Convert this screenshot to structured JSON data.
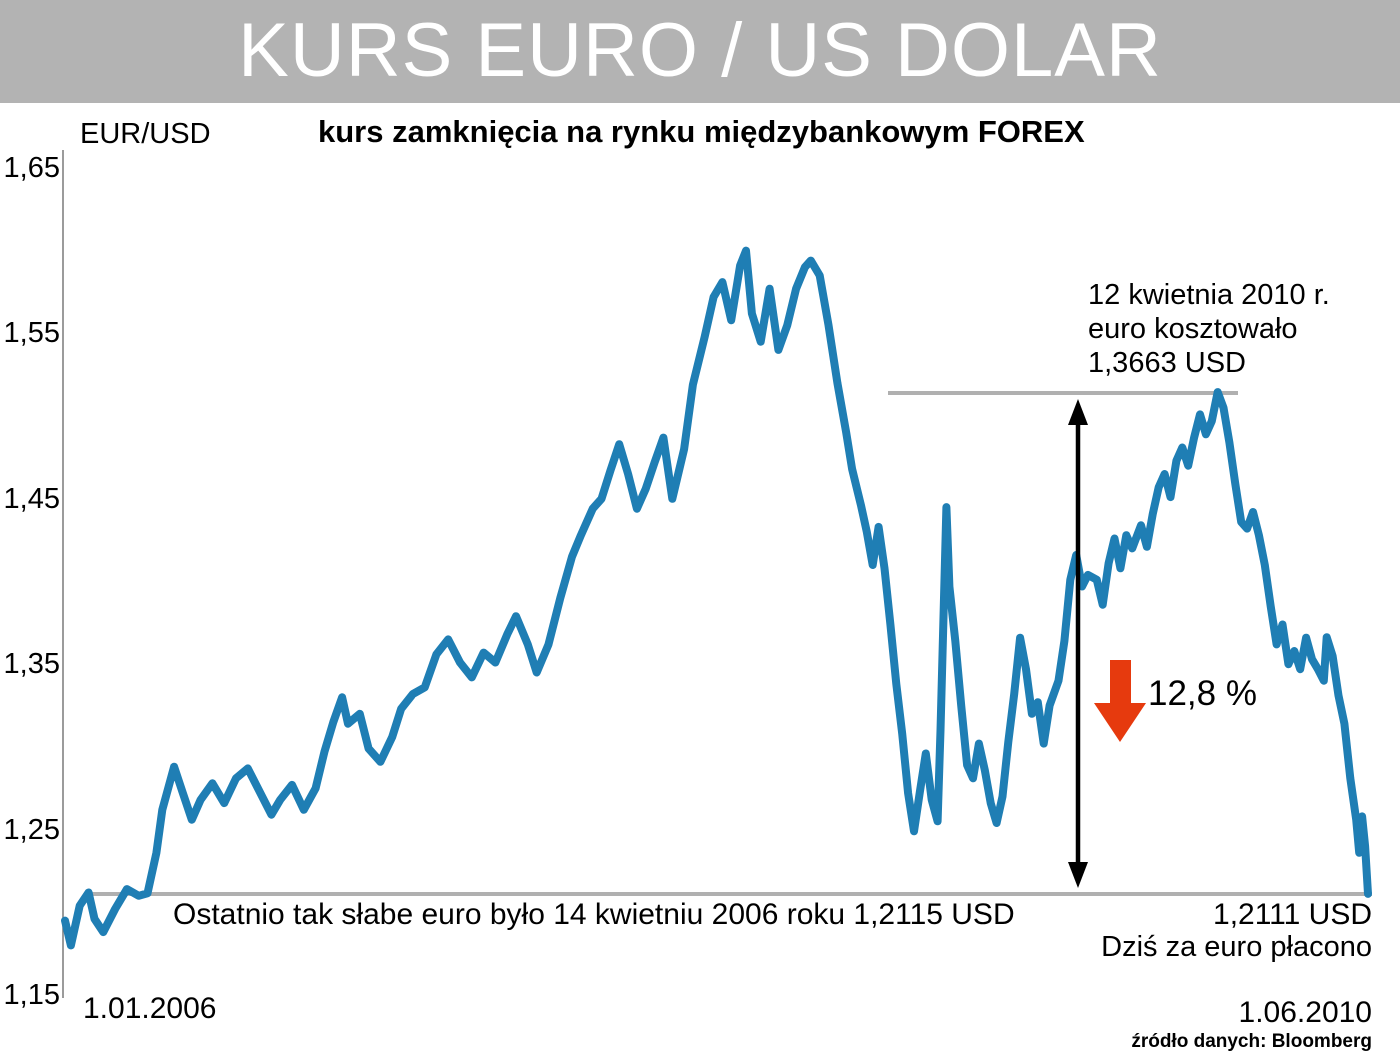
{
  "title": "KURS EURO / US DOLAR",
  "subtitle": "kurs zamknięcia na rynku międzybankowym FOREX",
  "colors": {
    "titlebar": "#b3b3b3",
    "line": "#1f7eb4",
    "ref_line": "#b0b0b0",
    "red_arrow": "#e63a0e",
    "black_arrow": "#000000"
  },
  "y_axis": {
    "label": "EUR/USD",
    "ticks": [
      "1,65",
      "1,55",
      "1,45",
      "1,35",
      "1,25",
      "1,15"
    ]
  },
  "x_axis": {
    "start": "1.01.2006",
    "end": "1.06.2010"
  },
  "annotations": {
    "peak_line1": "12 kwietnia 2010 r.",
    "peak_line2": "euro kosztowało",
    "peak_line3": "1,3663 USD",
    "drop_pct": "12,8 %",
    "low_2006": "Ostatnio tak słabe euro było 14 kwietniu 2006 roku 1,2115 USD",
    "current_value": "1,2111 USD",
    "current_caption": "Dziś za euro płacono",
    "source": "źródło danych: Bloomberg"
  },
  "chart_data": {
    "type": "line",
    "title": "KURS EURO / US DOLAR",
    "subtitle": "kurs zamknięcia na rynku międzybankowym FOREX",
    "ylabel": "EUR/USD",
    "ylim": [
      1.15,
      1.65
    ],
    "y_ticks": [
      1.65,
      1.55,
      1.45,
      1.35,
      1.25,
      1.15
    ],
    "x_range_labels": [
      "1.01.2006",
      "1.06.2010"
    ],
    "grid": false,
    "legend": false,
    "ref_levels": {
      "high": 1.514,
      "current": 1.2111
    },
    "highlight_values": {
      "date_2010_04_12": 1.3663,
      "low_2006_04_14": 1.2115,
      "drop_percent": 12.8
    },
    "series": [
      {
        "name": "EUR/USD",
        "points": [
          [
            2006.0,
            1.195
          ],
          [
            2006.02,
            1.18
          ],
          [
            2006.05,
            1.204
          ],
          [
            2006.08,
            1.212
          ],
          [
            2006.1,
            1.196
          ],
          [
            2006.13,
            1.188
          ],
          [
            2006.17,
            1.202
          ],
          [
            2006.21,
            1.214
          ],
          [
            2006.25,
            1.21
          ],
          [
            2006.28,
            1.2115
          ],
          [
            2006.31,
            1.236
          ],
          [
            2006.33,
            1.262
          ],
          [
            2006.37,
            1.288
          ],
          [
            2006.4,
            1.272
          ],
          [
            2006.43,
            1.256
          ],
          [
            2006.46,
            1.268
          ],
          [
            2006.5,
            1.278
          ],
          [
            2006.54,
            1.266
          ],
          [
            2006.58,
            1.281
          ],
          [
            2006.62,
            1.287
          ],
          [
            2006.66,
            1.273
          ],
          [
            2006.7,
            1.259
          ],
          [
            2006.73,
            1.268
          ],
          [
            2006.77,
            1.277
          ],
          [
            2006.81,
            1.262
          ],
          [
            2006.85,
            1.275
          ],
          [
            2006.88,
            1.297
          ],
          [
            2006.91,
            1.315
          ],
          [
            2006.94,
            1.33
          ],
          [
            2006.96,
            1.314
          ],
          [
            2007.0,
            1.32
          ],
          [
            2007.03,
            1.299
          ],
          [
            2007.07,
            1.291
          ],
          [
            2007.11,
            1.306
          ],
          [
            2007.14,
            1.323
          ],
          [
            2007.18,
            1.332
          ],
          [
            2007.22,
            1.336
          ],
          [
            2007.26,
            1.356
          ],
          [
            2007.3,
            1.365
          ],
          [
            2007.34,
            1.351
          ],
          [
            2007.38,
            1.342
          ],
          [
            2007.42,
            1.357
          ],
          [
            2007.46,
            1.351
          ],
          [
            2007.5,
            1.368
          ],
          [
            2007.53,
            1.379
          ],
          [
            2007.57,
            1.362
          ],
          [
            2007.6,
            1.345
          ],
          [
            2007.64,
            1.362
          ],
          [
            2007.68,
            1.39
          ],
          [
            2007.72,
            1.415
          ],
          [
            2007.75,
            1.428
          ],
          [
            2007.79,
            1.444
          ],
          [
            2007.82,
            1.45
          ],
          [
            2007.85,
            1.467
          ],
          [
            2007.88,
            1.483
          ],
          [
            2007.91,
            1.465
          ],
          [
            2007.94,
            1.444
          ],
          [
            2007.97,
            1.456
          ],
          [
            2008.0,
            1.472
          ],
          [
            2008.03,
            1.487
          ],
          [
            2008.06,
            1.45
          ],
          [
            2008.1,
            1.48
          ],
          [
            2008.13,
            1.519
          ],
          [
            2008.17,
            1.548
          ],
          [
            2008.2,
            1.572
          ],
          [
            2008.23,
            1.581
          ],
          [
            2008.26,
            1.558
          ],
          [
            2008.29,
            1.591
          ],
          [
            2008.31,
            1.6
          ],
          [
            2008.33,
            1.562
          ],
          [
            2008.36,
            1.545
          ],
          [
            2008.39,
            1.577
          ],
          [
            2008.42,
            1.54
          ],
          [
            2008.45,
            1.555
          ],
          [
            2008.48,
            1.577
          ],
          [
            2008.51,
            1.59
          ],
          [
            2008.53,
            1.594
          ],
          [
            2008.56,
            1.585
          ],
          [
            2008.59,
            1.555
          ],
          [
            2008.62,
            1.52
          ],
          [
            2008.65,
            1.49
          ],
          [
            2008.67,
            1.468
          ],
          [
            2008.7,
            1.446
          ],
          [
            2008.72,
            1.43
          ],
          [
            2008.74,
            1.41
          ],
          [
            2008.76,
            1.433
          ],
          [
            2008.78,
            1.408
          ],
          [
            2008.8,
            1.374
          ],
          [
            2008.82,
            1.338
          ],
          [
            2008.84,
            1.308
          ],
          [
            2008.86,
            1.272
          ],
          [
            2008.88,
            1.249
          ],
          [
            2008.9,
            1.273
          ],
          [
            2008.92,
            1.296
          ],
          [
            2008.94,
            1.268
          ],
          [
            2008.96,
            1.255
          ],
          [
            2008.97,
            1.31
          ],
          [
            2008.99,
            1.445
          ],
          [
            2009.0,
            1.397
          ],
          [
            2009.02,
            1.364
          ],
          [
            2009.04,
            1.325
          ],
          [
            2009.06,
            1.289
          ],
          [
            2009.08,
            1.281
          ],
          [
            2009.1,
            1.302
          ],
          [
            2009.12,
            1.286
          ],
          [
            2009.14,
            1.266
          ],
          [
            2009.16,
            1.254
          ],
          [
            2009.18,
            1.27
          ],
          [
            2009.2,
            1.303
          ],
          [
            2009.22,
            1.332
          ],
          [
            2009.24,
            1.366
          ],
          [
            2009.26,
            1.347
          ],
          [
            2009.28,
            1.32
          ],
          [
            2009.3,
            1.327
          ],
          [
            2009.32,
            1.302
          ],
          [
            2009.34,
            1.325
          ],
          [
            2009.37,
            1.34
          ],
          [
            2009.39,
            1.364
          ],
          [
            2009.41,
            1.401
          ],
          [
            2009.43,
            1.416
          ],
          [
            2009.45,
            1.397
          ],
          [
            2009.47,
            1.404
          ],
          [
            2009.5,
            1.401
          ],
          [
            2009.52,
            1.386
          ],
          [
            2009.54,
            1.411
          ],
          [
            2009.56,
            1.426
          ],
          [
            2009.58,
            1.408
          ],
          [
            2009.6,
            1.428
          ],
          [
            2009.62,
            1.42
          ],
          [
            2009.65,
            1.434
          ],
          [
            2009.67,
            1.421
          ],
          [
            2009.69,
            1.441
          ],
          [
            2009.71,
            1.457
          ],
          [
            2009.73,
            1.465
          ],
          [
            2009.75,
            1.451
          ],
          [
            2009.77,
            1.473
          ],
          [
            2009.79,
            1.481
          ],
          [
            2009.81,
            1.47
          ],
          [
            2009.83,
            1.487
          ],
          [
            2009.85,
            1.501
          ],
          [
            2009.87,
            1.489
          ],
          [
            2009.89,
            1.497
          ],
          [
            2009.91,
            1.5145
          ],
          [
            2009.93,
            1.505
          ],
          [
            2009.95,
            1.484
          ],
          [
            2009.97,
            1.459
          ],
          [
            2009.99,
            1.436
          ],
          [
            2010.01,
            1.432
          ],
          [
            2010.03,
            1.442
          ],
          [
            2010.05,
            1.428
          ],
          [
            2010.07,
            1.41
          ],
          [
            2010.09,
            1.385
          ],
          [
            2010.11,
            1.362
          ],
          [
            2010.13,
            1.374
          ],
          [
            2010.15,
            1.35
          ],
          [
            2010.17,
            1.358
          ],
          [
            2010.19,
            1.347
          ],
          [
            2010.21,
            1.366
          ],
          [
            2010.23,
            1.353
          ],
          [
            2010.25,
            1.347
          ],
          [
            2010.27,
            1.34
          ],
          [
            2010.28,
            1.3663
          ],
          [
            2010.3,
            1.355
          ],
          [
            2010.32,
            1.331
          ],
          [
            2010.34,
            1.314
          ],
          [
            2010.36,
            1.281
          ],
          [
            2010.38,
            1.256
          ],
          [
            2010.39,
            1.236
          ],
          [
            2010.4,
            1.258
          ],
          [
            2010.41,
            1.24
          ],
          [
            2010.42,
            1.2111
          ]
        ]
      }
    ]
  }
}
